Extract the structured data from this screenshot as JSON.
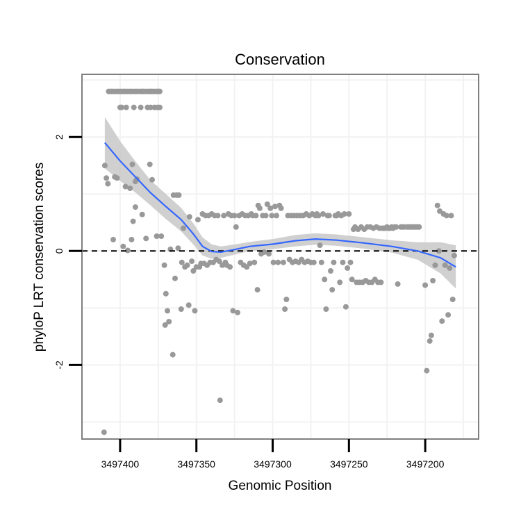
{
  "chart_data": {
    "type": "scatter",
    "title": "Conservation",
    "xlabel": "Genomic Position",
    "ylabel": "phyloP LRT conservation scores",
    "x_reversed": true,
    "xlim": [
      3497425,
      3497165
    ],
    "ylim": [
      -3.3,
      3.1
    ],
    "xticks": [
      3497400,
      3497350,
      3497300,
      3497250,
      3497200
    ],
    "xtick_labels": [
      "3497400",
      "3497350",
      "3497300",
      "3497250",
      "3497200"
    ],
    "yticks": [
      -2,
      0,
      2
    ],
    "ytick_labels": [
      "-2",
      "0",
      "2"
    ],
    "grid": true,
    "reference_line": {
      "y": 0,
      "style": "dashed"
    },
    "colors": {
      "points": "#999999",
      "smooth": "#3366FF",
      "ribbon": "#C8C8C8",
      "panel": "#FFFFFF",
      "grid": "#F2F2F2",
      "border": "#7F7F7F"
    },
    "points": [
      {
        "x": 3497410.0,
        "y": 1.5
      },
      {
        "x": 3497409.0,
        "y": 1.28
      },
      {
        "x": 3497408.0,
        "y": 1.18
      },
      {
        "x": 3497407.5,
        "y": 2.8
      },
      {
        "x": 3497406.0,
        "y": 2.8
      },
      {
        "x": 3497405.0,
        "y": 2.8
      },
      {
        "x": 3497403.5,
        "y": 2.8
      },
      {
        "x": 3497402.0,
        "y": 2.8
      },
      {
        "x": 3497401.0,
        "y": 2.8
      },
      {
        "x": 3497399.5,
        "y": 2.8
      },
      {
        "x": 3497398.0,
        "y": 2.8
      },
      {
        "x": 3497397.0,
        "y": 2.8
      },
      {
        "x": 3497395.5,
        "y": 2.8
      },
      {
        "x": 3497394.0,
        "y": 2.8
      },
      {
        "x": 3497393.0,
        "y": 2.8
      },
      {
        "x": 3497391.5,
        "y": 2.8
      },
      {
        "x": 3497390.0,
        "y": 2.8
      },
      {
        "x": 3497389.0,
        "y": 2.8
      },
      {
        "x": 3497387.5,
        "y": 2.8
      },
      {
        "x": 3497386.0,
        "y": 2.8
      },
      {
        "x": 3497385.0,
        "y": 2.8
      },
      {
        "x": 3497384.0,
        "y": 2.8
      },
      {
        "x": 3497382.5,
        "y": 2.8
      },
      {
        "x": 3497381.0,
        "y": 2.8
      },
      {
        "x": 3497380.0,
        "y": 2.8
      },
      {
        "x": 3497379.0,
        "y": 2.8
      },
      {
        "x": 3497377.5,
        "y": 2.8
      },
      {
        "x": 3497376.0,
        "y": 2.8
      },
      {
        "x": 3497375.0,
        "y": 2.8
      },
      {
        "x": 3497374.0,
        "y": 2.8
      },
      {
        "x": 3497400.0,
        "y": 2.52
      },
      {
        "x": 3497399.0,
        "y": 2.52
      },
      {
        "x": 3497396.0,
        "y": 2.52
      },
      {
        "x": 3497391.0,
        "y": 2.52
      },
      {
        "x": 3497386.5,
        "y": 2.52
      },
      {
        "x": 3497382.0,
        "y": 2.52
      },
      {
        "x": 3497380.0,
        "y": 2.52
      },
      {
        "x": 3497377.5,
        "y": 2.52
      },
      {
        "x": 3497375.5,
        "y": 2.52
      },
      {
        "x": 3497374.0,
        "y": 2.52
      },
      {
        "x": 3497403.5,
        "y": 1.3
      },
      {
        "x": 3497402.0,
        "y": 1.28
      },
      {
        "x": 3497396.5,
        "y": 1.13
      },
      {
        "x": 3497393.5,
        "y": 1.1
      },
      {
        "x": 3497392.0,
        "y": 1.52
      },
      {
        "x": 3497390.0,
        "y": 1.22
      },
      {
        "x": 3497389.0,
        "y": 1.26
      },
      {
        "x": 3497385.5,
        "y": 0.64
      },
      {
        "x": 3497383.0,
        "y": 0.22
      },
      {
        "x": 3497380.5,
        "y": 1.52
      },
      {
        "x": 3497379.0,
        "y": 1.25
      },
      {
        "x": 3497376.0,
        "y": 0.26
      },
      {
        "x": 3497373.0,
        "y": 0.26
      },
      {
        "x": 3497404.5,
        "y": 0.2
      },
      {
        "x": 3497398.0,
        "y": 0.08
      },
      {
        "x": 3497395.0,
        "y": 0.01
      },
      {
        "x": 3497392.5,
        "y": 0.2
      },
      {
        "x": 3497391.5,
        "y": 0.52
      },
      {
        "x": 3497390.0,
        "y": 0.77
      },
      {
        "x": 3497371.0,
        "y": -0.25
      },
      {
        "x": 3497370.0,
        "y": -0.75
      },
      {
        "x": 3497369.0,
        "y": -1.05
      },
      {
        "x": 3497368.0,
        "y": -1.24
      },
      {
        "x": 3497370.5,
        "y": -1.3
      },
      {
        "x": 3497367.0,
        "y": 0.03
      },
      {
        "x": 3497365.5,
        "y": -1.82
      },
      {
        "x": 3497365.0,
        "y": 0.98
      },
      {
        "x": 3497364.0,
        "y": -0.48
      },
      {
        "x": 3497363.0,
        "y": 0.98
      },
      {
        "x": 3497361.5,
        "y": 0.98
      },
      {
        "x": 3497362.0,
        "y": 0.05
      },
      {
        "x": 3497360.0,
        "y": -1.02
      },
      {
        "x": 3497359.5,
        "y": -0.2
      },
      {
        "x": 3497358.5,
        "y": 0.4
      },
      {
        "x": 3497357.5,
        "y": -0.28
      },
      {
        "x": 3497356.0,
        "y": -0.25
      },
      {
        "x": 3497355.0,
        "y": -0.95
      },
      {
        "x": 3497354.5,
        "y": 0.6
      },
      {
        "x": 3497353.0,
        "y": -0.18
      },
      {
        "x": 3497352.0,
        "y": -0.35
      },
      {
        "x": 3497351.0,
        "y": -1.05
      },
      {
        "x": 3497350.0,
        "y": -0.28
      },
      {
        "x": 3497349.0,
        "y": 0.55
      },
      {
        "x": 3497348.0,
        "y": -0.28
      },
      {
        "x": 3497347.0,
        "y": -0.22
      },
      {
        "x": 3497346.0,
        "y": 0.65
      },
      {
        "x": 3497345.0,
        "y": -0.22
      },
      {
        "x": 3497344.0,
        "y": 0.62
      },
      {
        "x": 3497343.0,
        "y": -0.25
      },
      {
        "x": 3497342.0,
        "y": 0.62
      },
      {
        "x": 3497341.0,
        "y": -0.2
      },
      {
        "x": 3497340.0,
        "y": 0.65
      },
      {
        "x": 3497339.0,
        "y": -0.2
      },
      {
        "x": 3497338.0,
        "y": 0.62
      },
      {
        "x": 3497337.0,
        "y": -0.15
      },
      {
        "x": 3497336.0,
        "y": 0.62
      },
      {
        "x": 3497335.0,
        "y": -0.18
      },
      {
        "x": 3497334.5,
        "y": -2.62
      },
      {
        "x": 3497333.0,
        "y": -0.25
      },
      {
        "x": 3497332.0,
        "y": 0.62
      },
      {
        "x": 3497331.0,
        "y": -0.2
      },
      {
        "x": 3497330.0,
        "y": -0.25
      },
      {
        "x": 3497329.0,
        "y": 0.65
      },
      {
        "x": 3497328.0,
        "y": -0.28
      },
      {
        "x": 3497327.0,
        "y": 0.62
      },
      {
        "x": 3497326.0,
        "y": -1.05
      },
      {
        "x": 3497325.0,
        "y": 0.62
      },
      {
        "x": 3497324.0,
        "y": 0.42
      },
      {
        "x": 3497323.0,
        "y": -1.08
      },
      {
        "x": 3497322.0,
        "y": 0.62
      },
      {
        "x": 3497321.0,
        "y": -0.2
      },
      {
        "x": 3497320.0,
        "y": 0.65
      },
      {
        "x": 3497319.0,
        "y": -0.25
      },
      {
        "x": 3497318.0,
        "y": 0.62
      },
      {
        "x": 3497317.0,
        "y": -0.28
      },
      {
        "x": 3497316.0,
        "y": 0.62
      },
      {
        "x": 3497315.0,
        "y": -0.22
      },
      {
        "x": 3497314.0,
        "y": 0.65
      },
      {
        "x": 3497313.0,
        "y": 0.62
      },
      {
        "x": 3497312.0,
        "y": -0.2
      },
      {
        "x": 3497311.0,
        "y": 0.62
      },
      {
        "x": 3497310.0,
        "y": -0.68
      },
      {
        "x": 3497309.5,
        "y": 0.8
      },
      {
        "x": 3497308.5,
        "y": 0.75
      },
      {
        "x": 3497307.5,
        "y": -0.05
      },
      {
        "x": 3497306.5,
        "y": 0.62
      },
      {
        "x": 3497305.5,
        "y": -0.02
      },
      {
        "x": 3497304.5,
        "y": 0.62
      },
      {
        "x": 3497303.5,
        "y": 0.82
      },
      {
        "x": 3497302.5,
        "y": -0.05
      },
      {
        "x": 3497301.5,
        "y": 0.75
      },
      {
        "x": 3497300.5,
        "y": 0.62
      },
      {
        "x": 3497299.5,
        "y": -0.2
      },
      {
        "x": 3497298.5,
        "y": 0.78
      },
      {
        "x": 3497297.5,
        "y": 0.62
      },
      {
        "x": 3497296.5,
        "y": -0.2
      },
      {
        "x": 3497295.5,
        "y": 0.8
      },
      {
        "x": 3497294.5,
        "y": 0.75
      },
      {
        "x": 3497293.0,
        "y": -0.2
      },
      {
        "x": 3497292.0,
        "y": -1.02
      },
      {
        "x": 3497291.0,
        "y": -0.85
      },
      {
        "x": 3497290.0,
        "y": 0.62
      },
      {
        "x": 3497289.0,
        "y": -0.15
      },
      {
        "x": 3497288.0,
        "y": 0.62
      },
      {
        "x": 3497287.0,
        "y": -0.2
      },
      {
        "x": 3497286.0,
        "y": 0.62
      },
      {
        "x": 3497285.0,
        "y": -0.18
      },
      {
        "x": 3497284.0,
        "y": 0.62
      },
      {
        "x": 3497283.0,
        "y": -0.2
      },
      {
        "x": 3497282.0,
        "y": 0.62
      },
      {
        "x": 3497281.0,
        "y": -0.15
      },
      {
        "x": 3497280.0,
        "y": 0.62
      },
      {
        "x": 3497279.0,
        "y": -0.2
      },
      {
        "x": 3497278.0,
        "y": 0.65
      },
      {
        "x": 3497277.0,
        "y": -0.18
      },
      {
        "x": 3497276.0,
        "y": 0.62
      },
      {
        "x": 3497275.0,
        "y": -0.2
      },
      {
        "x": 3497274.0,
        "y": 0.65
      },
      {
        "x": 3497273.0,
        "y": -0.2
      },
      {
        "x": 3497272.0,
        "y": 0.62
      },
      {
        "x": 3497271.0,
        "y": 0.65
      },
      {
        "x": 3497270.0,
        "y": 0.62
      },
      {
        "x": 3497269.0,
        "y": 0.1
      },
      {
        "x": 3497268.0,
        "y": -0.2
      },
      {
        "x": 3497267.0,
        "y": 0.65
      },
      {
        "x": 3497266.0,
        "y": -0.5
      },
      {
        "x": 3497265.0,
        "y": -1.02
      },
      {
        "x": 3497264.0,
        "y": 0.62
      },
      {
        "x": 3497263.0,
        "y": 0.62
      },
      {
        "x": 3497262.0,
        "y": -0.35
      },
      {
        "x": 3497261.0,
        "y": -0.68
      },
      {
        "x": 3497260.0,
        "y": -0.2
      },
      {
        "x": 3497259.0,
        "y": 0.62
      },
      {
        "x": 3497258.0,
        "y": 0.62
      },
      {
        "x": 3497257.0,
        "y": 0.65
      },
      {
        "x": 3497256.0,
        "y": -0.55
      },
      {
        "x": 3497255.0,
        "y": 0.62
      },
      {
        "x": 3497254.0,
        "y": -0.2
      },
      {
        "x": 3497253.0,
        "y": 0.65
      },
      {
        "x": 3497252.0,
        "y": -0.98
      },
      {
        "x": 3497251.0,
        "y": -0.3
      },
      {
        "x": 3497250.0,
        "y": 0.65
      },
      {
        "x": 3497249.0,
        "y": -0.2
      },
      {
        "x": 3497248.0,
        "y": -0.5
      },
      {
        "x": 3497247.0,
        "y": 0.38
      },
      {
        "x": 3497246.0,
        "y": 0.42
      },
      {
        "x": 3497245.0,
        "y": -0.55
      },
      {
        "x": 3497244.0,
        "y": 0.38
      },
      {
        "x": 3497243.0,
        "y": -0.55
      },
      {
        "x": 3497242.0,
        "y": 0.42
      },
      {
        "x": 3497241.0,
        "y": -0.55
      },
      {
        "x": 3497240.0,
        "y": 0.38
      },
      {
        "x": 3497239.0,
        "y": -0.52
      },
      {
        "x": 3497238.0,
        "y": 0.42
      },
      {
        "x": 3497237.0,
        "y": -0.55
      },
      {
        "x": 3497236.0,
        "y": 0.42
      },
      {
        "x": 3497235.0,
        "y": -0.55
      },
      {
        "x": 3497234.0,
        "y": 0.4
      },
      {
        "x": 3497233.0,
        "y": -0.5
      },
      {
        "x": 3497232.0,
        "y": 0.42
      },
      {
        "x": 3497231.0,
        "y": -0.55
      },
      {
        "x": 3497230.0,
        "y": 0.4
      },
      {
        "x": 3497229.0,
        "y": -0.55
      },
      {
        "x": 3497228.0,
        "y": 0.4
      },
      {
        "x": 3497227.0,
        "y": 0.4
      },
      {
        "x": 3497226.0,
        "y": 0.4
      },
      {
        "x": 3497225.0,
        "y": 0.42
      },
      {
        "x": 3497224.0,
        "y": 0.4
      },
      {
        "x": 3497223.0,
        "y": 0.4
      },
      {
        "x": 3497222.0,
        "y": 0.42
      },
      {
        "x": 3497221.0,
        "y": 0.4
      },
      {
        "x": 3497220.0,
        "y": 0.42
      },
      {
        "x": 3497219.0,
        "y": 0.42
      },
      {
        "x": 3497218.0,
        "y": -0.58
      },
      {
        "x": 3497216.0,
        "y": 0.42
      },
      {
        "x": 3497215.0,
        "y": 0.42
      },
      {
        "x": 3497214.0,
        "y": 0.42
      },
      {
        "x": 3497212.0,
        "y": 0.42
      },
      {
        "x": 3497211.0,
        "y": 0.42
      },
      {
        "x": 3497210.0,
        "y": 0.42
      },
      {
        "x": 3497209.0,
        "y": 0.42
      },
      {
        "x": 3497208.0,
        "y": 0.42
      },
      {
        "x": 3497207.0,
        "y": 0.42
      },
      {
        "x": 3497206.0,
        "y": 0.42
      },
      {
        "x": 3497205.0,
        "y": 0.42
      },
      {
        "x": 3497204.0,
        "y": 0.42
      },
      {
        "x": 3497200.0,
        "y": -0.6
      },
      {
        "x": 3497199.0,
        "y": -2.1
      },
      {
        "x": 3497197.0,
        "y": -1.58
      },
      {
        "x": 3497196.0,
        "y": -1.48
      },
      {
        "x": 3497195.0,
        "y": -0.52
      },
      {
        "x": 3497193.5,
        "y": -0.25
      },
      {
        "x": 3497192.0,
        "y": 0.8
      },
      {
        "x": 3497191.0,
        "y": 0.0
      },
      {
        "x": 3497190.5,
        "y": 0.7
      },
      {
        "x": 3497189.0,
        "y": -1.23
      },
      {
        "x": 3497188.0,
        "y": 0.65
      },
      {
        "x": 3497187.0,
        "y": -0.25
      },
      {
        "x": 3497186.0,
        "y": 0.62
      },
      {
        "x": 3497185.0,
        "y": -1.12
      },
      {
        "x": 3497184.0,
        "y": -0.3
      },
      {
        "x": 3497183.0,
        "y": 0.62
      },
      {
        "x": 3497182.0,
        "y": -0.85
      },
      {
        "x": 3497181.0,
        "y": -0.08
      },
      {
        "x": 3497410.5,
        "y": -3.18
      }
    ],
    "smooth_line": [
      {
        "x": 3497410,
        "y": 1.9
      },
      {
        "x": 3497400,
        "y": 1.58
      },
      {
        "x": 3497390,
        "y": 1.3
      },
      {
        "x": 3497380,
        "y": 1.02
      },
      {
        "x": 3497370,
        "y": 0.78
      },
      {
        "x": 3497360,
        "y": 0.55
      },
      {
        "x": 3497352,
        "y": 0.3
      },
      {
        "x": 3497346,
        "y": 0.08
      },
      {
        "x": 3497340,
        "y": -0.01
      },
      {
        "x": 3497334,
        "y": -0.02
      },
      {
        "x": 3497326,
        "y": 0.02
      },
      {
        "x": 3497315,
        "y": 0.08
      },
      {
        "x": 3497300,
        "y": 0.12
      },
      {
        "x": 3497285,
        "y": 0.18
      },
      {
        "x": 3497272,
        "y": 0.21
      },
      {
        "x": 3497258,
        "y": 0.19
      },
      {
        "x": 3497240,
        "y": 0.14
      },
      {
        "x": 3497222,
        "y": 0.08
      },
      {
        "x": 3497205,
        "y": 0.0
      },
      {
        "x": 3497190,
        "y": -0.12
      },
      {
        "x": 3497180,
        "y": -0.28
      }
    ],
    "ribbon_halfwidth": [
      {
        "x": 3497410,
        "w": 0.45
      },
      {
        "x": 3497395,
        "w": 0.3
      },
      {
        "x": 3497380,
        "w": 0.22
      },
      {
        "x": 3497365,
        "w": 0.22
      },
      {
        "x": 3497350,
        "w": 0.18
      },
      {
        "x": 3497335,
        "w": 0.1
      },
      {
        "x": 3497315,
        "w": 0.08
      },
      {
        "x": 3497285,
        "w": 0.1
      },
      {
        "x": 3497255,
        "w": 0.1
      },
      {
        "x": 3497230,
        "w": 0.1
      },
      {
        "x": 3497210,
        "w": 0.12
      },
      {
        "x": 3497195,
        "w": 0.22
      },
      {
        "x": 3497180,
        "w": 0.38
      }
    ]
  }
}
